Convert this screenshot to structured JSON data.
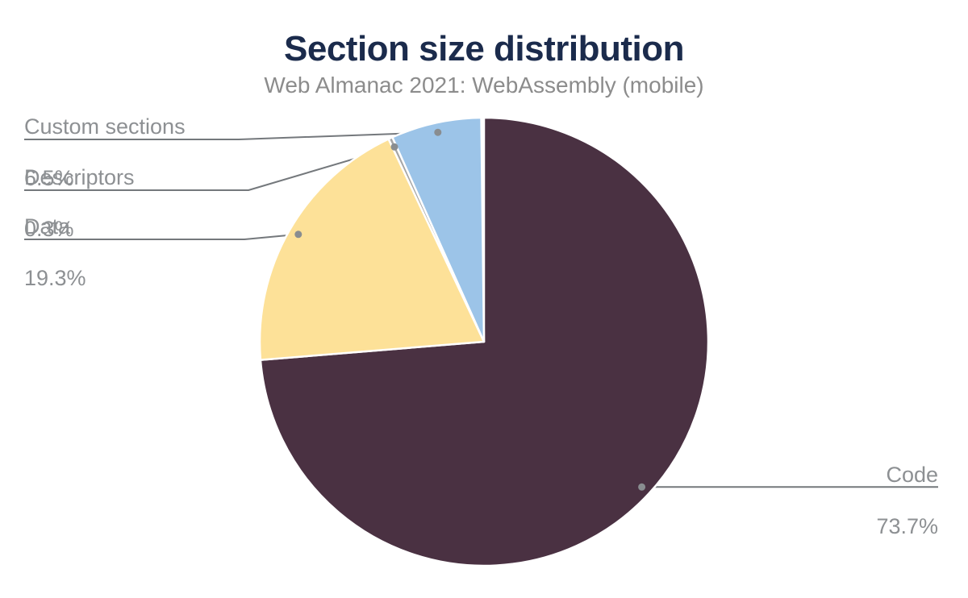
{
  "figure": {
    "title": "Section size distribution",
    "subtitle": "Web Almanac 2021: WebAssembly (mobile)"
  },
  "chart_data": {
    "type": "pie",
    "title": "Section size distribution",
    "subtitle": "Web Almanac 2021: WebAssembly (mobile)",
    "unit": "%",
    "start_angle_deg": 0,
    "direction": "clockwise",
    "legend_position": "callouts",
    "slices": [
      {
        "label": "Code",
        "value": 73.7,
        "display": "73.7%",
        "color": "#4A3142",
        "callout_side": "right"
      },
      {
        "label": "Data",
        "value": 19.3,
        "display": "19.3%",
        "color": "#FDE198",
        "callout_side": "left"
      },
      {
        "label": "Descriptors",
        "value": 0.3,
        "display": "0.3%",
        "color": "#A5A5A5",
        "callout_side": "left"
      },
      {
        "label": "Custom sections",
        "value": 6.5,
        "display": "6.5%",
        "color": "#9CC4E8",
        "callout_side": "left"
      }
    ],
    "colors": {
      "title": "#1b2b4c",
      "subtitle": "#8c8c8c",
      "callout_text": "#8d9093",
      "leader_line": "#74787c",
      "leader_dot": "#898d90",
      "slice_stroke": "#ffffff"
    }
  }
}
